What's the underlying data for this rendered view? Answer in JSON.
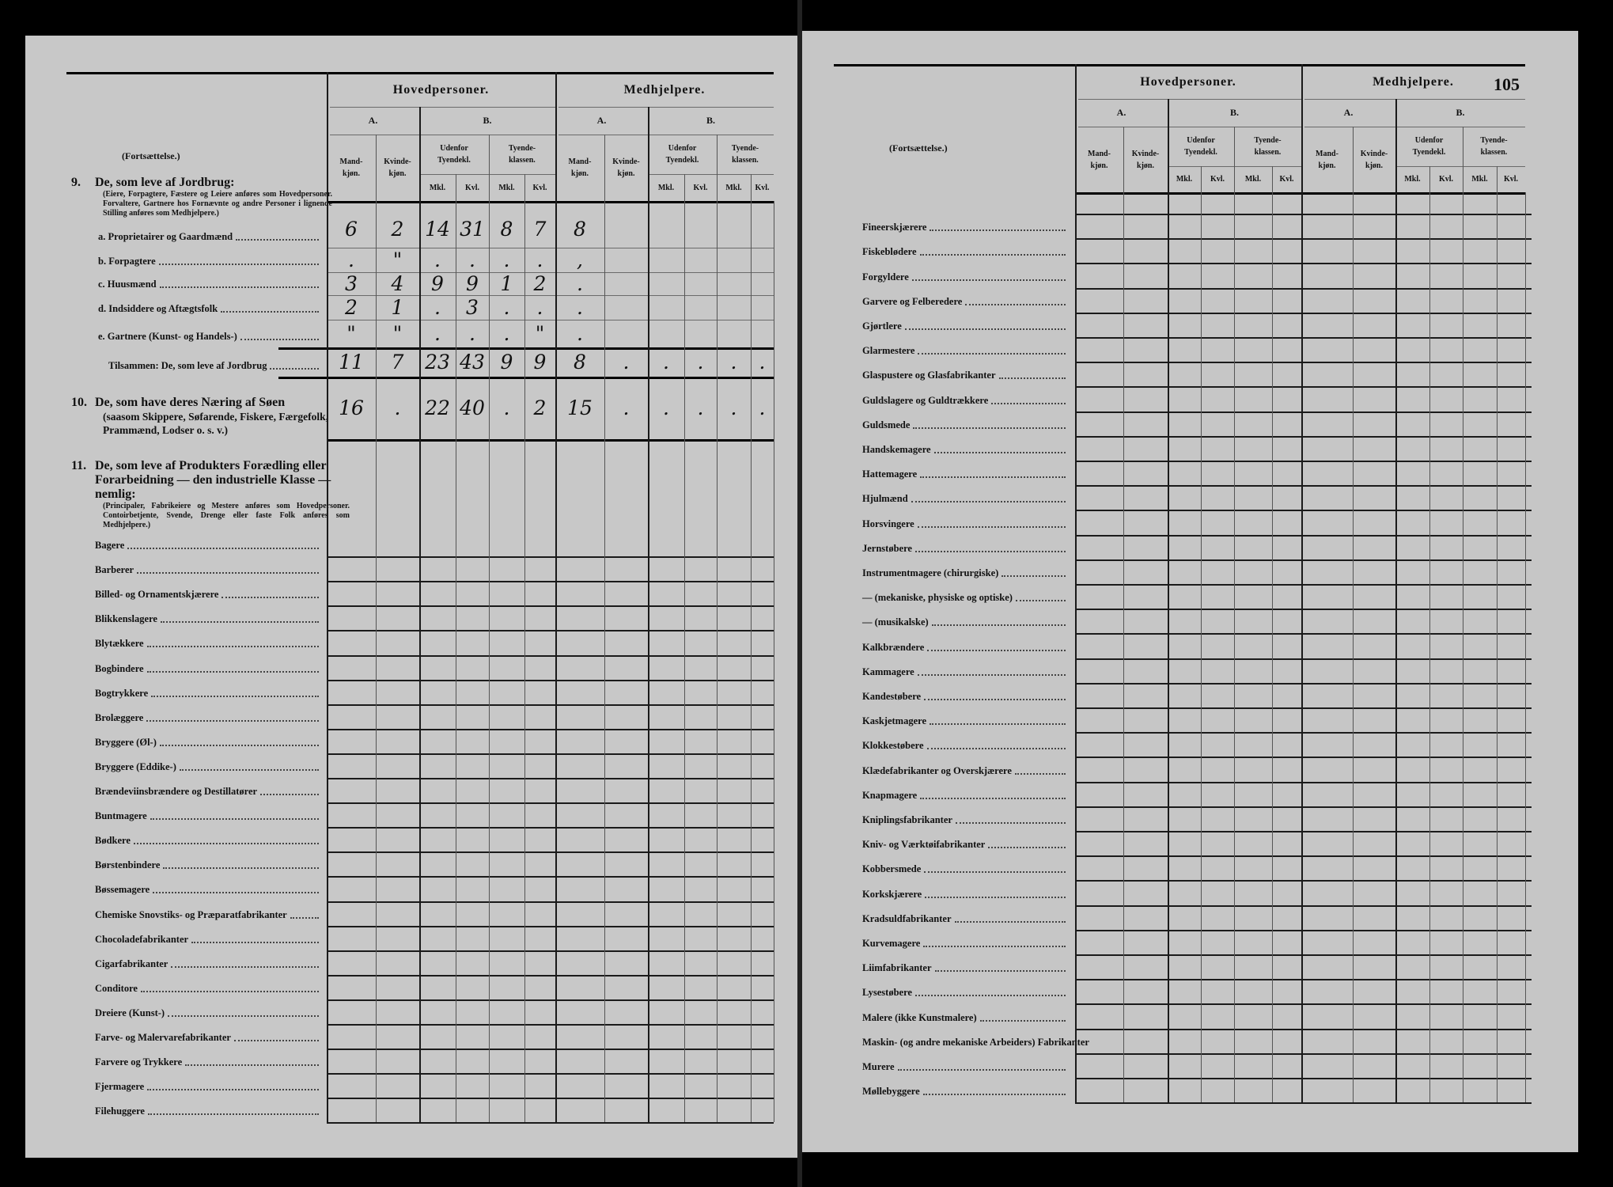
{
  "header": {
    "hovedpersoner": "Hovedpersoner.",
    "medhjelpere": "Medhjelpere.",
    "a": "A.",
    "b": "B.",
    "mandkjon": "Mand-\nkjøn.",
    "kvindekjon": "Kvinde-\nkjøn.",
    "udenfor": "Udenfor\nTyendekl.",
    "tyende": "Tyende-\nklassen.",
    "mkl": "Mkl.",
    "kvl": "Kvl."
  },
  "left_page": {
    "continuation": "(Fortsættelse.)",
    "section9": {
      "number": "9.",
      "title": "De, som leve af Jordbrug:",
      "note": "(Eiere, Forpagtere, Fæstere og Leiere anføres som Hovedpersoner. Forvaltere, Gartnere hos Fornævnte og andre Personer i lignende Stilling anføres som Medhjelpere.)"
    },
    "section10": {
      "number": "10.",
      "title": "De, som have deres Næring af Søen",
      "subtitle": "(saasom Skippere, Søfarende, Fiskere, Færgefolk, Prammænd, Lodser o. s. v.)"
    },
    "section11": {
      "number": "11.",
      "title": "De, som leve af Produkters Forædling eller Forarbeidning — den industrielle Klasse — nemlig:",
      "note": "(Principaler, Fabrikeiere og Mestere anføres som Hovedpersoner. Contoirbetjente, Svende, Drenge eller faste Folk anføres som Medhjelpere.)"
    },
    "rows": [
      {
        "label": "a. Proprietairer og Gaardmænd",
        "values": [
          "6",
          "2",
          "14",
          "31",
          "8",
          "7",
          "8",
          "",
          "",
          "",
          "",
          ""
        ]
      },
      {
        "label": "b. Forpagtere",
        "values": [
          ".",
          "\"",
          ".",
          ".",
          ".",
          ".",
          ",",
          "",
          "",
          "",
          "",
          ""
        ]
      },
      {
        "label": "c. Huusmænd",
        "values": [
          "3",
          "4",
          "9",
          "9",
          "1",
          "2",
          ".",
          "",
          "",
          "",
          "",
          ""
        ]
      },
      {
        "label": "d. Indsiddere og Aftægtsfolk",
        "values": [
          "2",
          "1",
          ".",
          "3",
          ".",
          ".",
          ".",
          "",
          "",
          "",
          "",
          ""
        ]
      },
      {
        "label": "e. Gartnere (Kunst- og Handels-)",
        "values": [
          "\"",
          "\"",
          ".",
          ".",
          ".",
          "\"",
          ".",
          "",
          "",
          "",
          "",
          ""
        ]
      },
      {
        "label": "Tilsammen:  De, som leve af Jordbrug",
        "values": [
          "11",
          "7",
          "23",
          "43",
          "9",
          "9",
          "8",
          ".",
          ".",
          ".",
          ".",
          "."
        ]
      },
      {
        "label": "",
        "values": [
          "16",
          ".",
          "22",
          "40",
          ".",
          "2",
          "15",
          ".",
          ".",
          ".",
          ".",
          "."
        ]
      }
    ],
    "items": [
      "Bagere",
      "Barberer",
      "Billed- og Ornamentskjærere",
      "Blikkenslagere",
      "Blytækkere",
      "Bogbindere",
      "Bogtrykkere",
      "Brolæggere",
      "Bryggere (Øl-)",
      "Bryggere (Eddike-)",
      "Brændeviinsbrændere og Destillatører",
      "Buntmagere",
      "Bødkere",
      "Børstenbindere",
      "Bøssemagere",
      "Chemiske Snovstiks- og Præparatfabrikanter",
      "Chocoladefabrikanter",
      "Cigarfabrikanter",
      "Conditore",
      "Dreiere (Kunst-)",
      "Farve- og Malervarefabrikanter",
      "Farvere og Trykkere",
      "Fjermagere",
      "Filehuggere"
    ]
  },
  "right_page": {
    "page_number": "105",
    "continuation": "(Fortsættelse.)",
    "items": [
      "Fineerskjærere",
      "Fiskeblødere",
      "Forgyldere",
      "Garvere og Felberedere",
      "Gjørtlere",
      "Glarmestere",
      "Glaspustere og Glasfabrikanter",
      "Guldslagere og Guldtrækkere",
      "Guldsmede",
      "Handskemagere",
      "Hattemagere",
      "Hjulmænd",
      "Horsvingere",
      "Jernstøbere",
      "Instrumentmagere (chirurgiske)",
      "—        (mekaniske, physiske og optiske)",
      "—        (musikalske)",
      "Kalkbrændere",
      "Kammagere",
      "Kandestøbere",
      "Kaskjetmagere",
      "Klokkestøbere",
      "Klædefabrikanter og Overskjærere",
      "Knapmagere",
      "Kniplingsfabrikanter",
      "Kniv- og Værktøifabrikanter",
      "Kobbersmede",
      "Korkskjærere",
      "Kradsuldfabrikanter",
      "Kurvemagere",
      "Liimfabrikanter",
      "Lysestøbere",
      "Malere (ikke Kunstmalere)",
      "Maskin- (og andre mekaniske Arbeiders) Fabrikanter",
      "Murere",
      "Møllebyggere"
    ]
  }
}
